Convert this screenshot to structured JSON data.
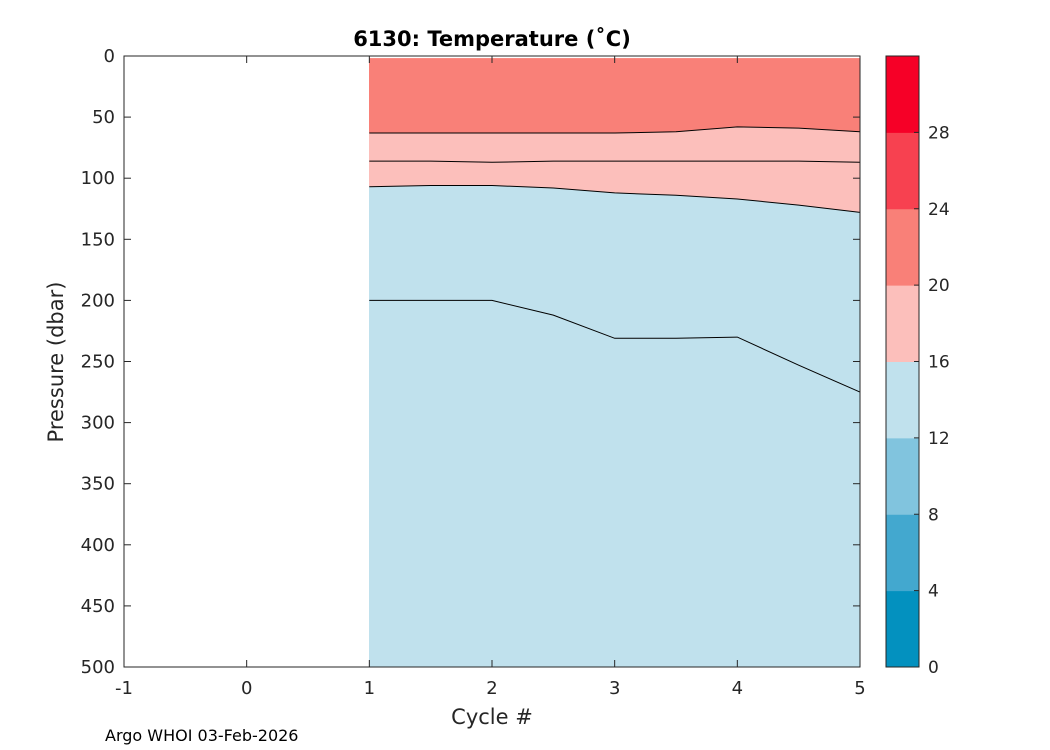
{
  "chart_data": {
    "type": "filled-contour",
    "title": "6130:  Temperature (˚C)",
    "xlabel": "Cycle #",
    "ylabel": "Pressure (dbar)",
    "xlim": [
      -1,
      5
    ],
    "ylim": [
      0,
      500
    ],
    "y_reversed": true,
    "x_ticks": [
      "-1",
      "0",
      "1",
      "2",
      "3",
      "4",
      "5"
    ],
    "y_ticks": [
      "0",
      "50",
      "100",
      "150",
      "200",
      "250",
      "300",
      "350",
      "400",
      "450",
      "500"
    ],
    "data_x": [
      1,
      1.5,
      2,
      2.5,
      3,
      3.5,
      4,
      4.5,
      5
    ],
    "data_top_pressure": 2,
    "data_bottom_pressure": 500,
    "isotherms": [
      {
        "temperature": 20,
        "pressure": [
          63,
          63,
          63,
          63,
          63,
          62,
          58,
          59,
          62
        ]
      },
      {
        "temperature": 18,
        "pressure": [
          86,
          86,
          87,
          86,
          86,
          86,
          86,
          86,
          87
        ]
      },
      {
        "temperature": 16,
        "pressure": [
          107,
          106,
          106,
          108,
          112,
          114,
          117,
          122,
          128
        ]
      },
      {
        "temperature": 14,
        "pressure": [
          200,
          200,
          200,
          212,
          231,
          231,
          230,
          253,
          275
        ]
      }
    ],
    "bands": [
      {
        "range": "20-24",
        "from_top": true,
        "to_isotherm": 0
      },
      {
        "range": "16-20",
        "from_isotherm": 0,
        "to_isotherm": 2
      },
      {
        "range": "12-16",
        "from_isotherm": 2,
        "to_bottom": true
      }
    ],
    "colorbar": {
      "min": 0,
      "max": 32,
      "ticks": [
        "0",
        "4",
        "8",
        "12",
        "16",
        "20",
        "24",
        "28"
      ],
      "levels": [
        {
          "from": 0,
          "to": 4,
          "color": "#0391bf"
        },
        {
          "from": 4,
          "to": 8,
          "color": "#43a8cf"
        },
        {
          "from": 8,
          "to": 12,
          "color": "#81c4de"
        },
        {
          "from": 12,
          "to": 16,
          "color": "#c0e1ed"
        },
        {
          "from": 16,
          "to": 20,
          "color": "#fcbfbb"
        },
        {
          "from": 20,
          "to": 24,
          "color": "#f98078"
        },
        {
          "from": 24,
          "to": 28,
          "color": "#f74150"
        },
        {
          "from": 28,
          "to": 32,
          "color": "#f60027"
        }
      ]
    }
  },
  "footer": "Argo WHOI 03-Feb-2026"
}
